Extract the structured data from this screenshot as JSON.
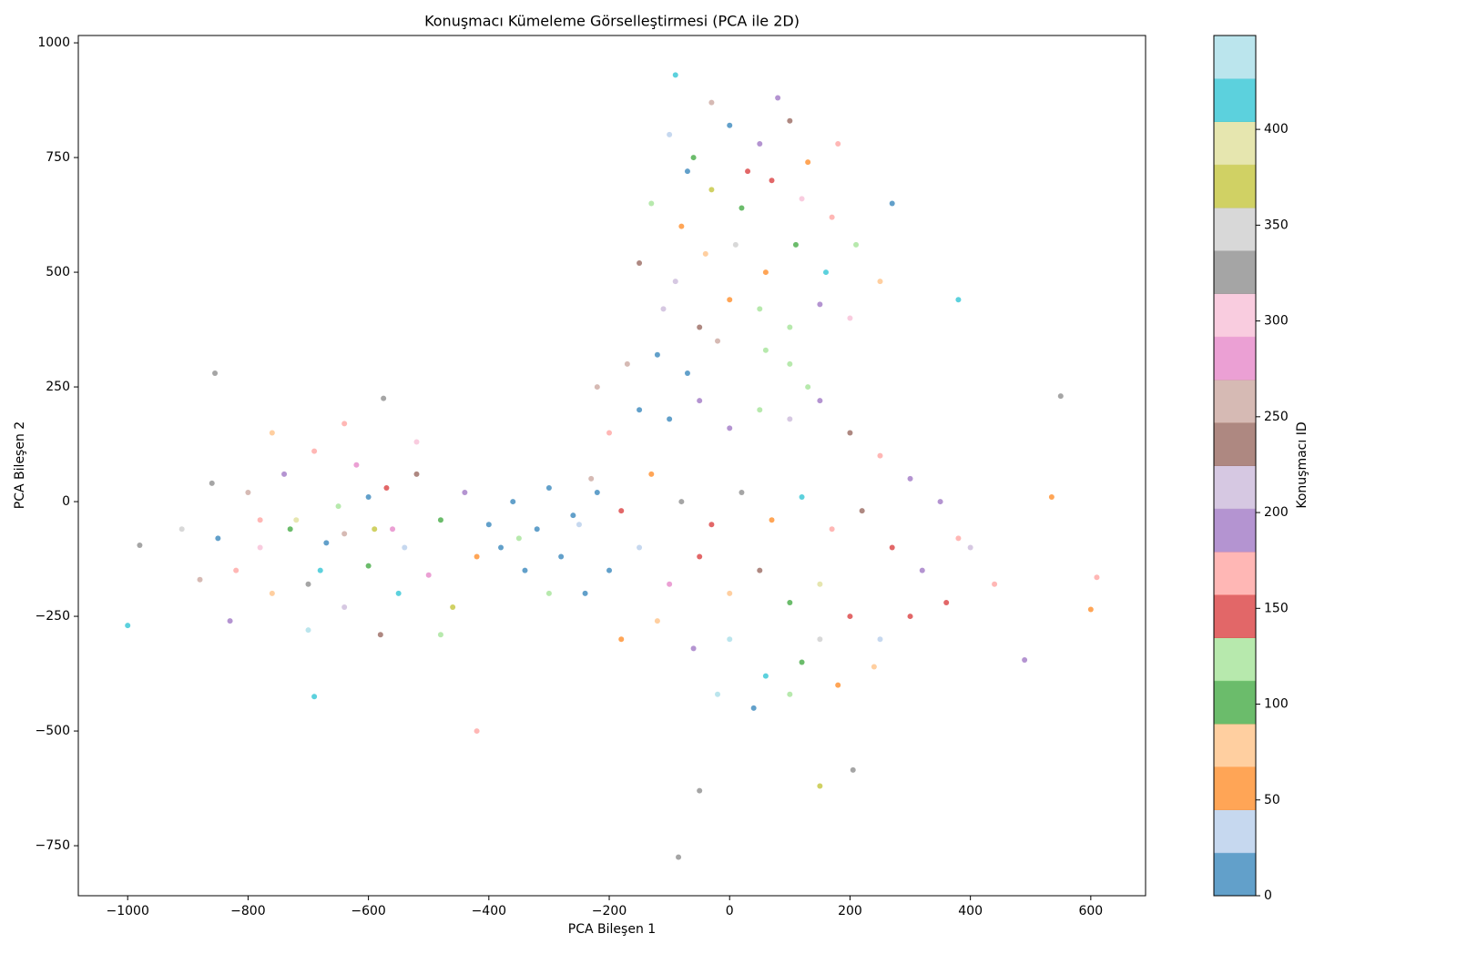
{
  "chart_data": {
    "type": "scatter",
    "title": "Konuşmacı Kümeleme Görselleştirmesi (PCA ile 2D)",
    "x_label": "PCA Bileşen 1",
    "y_label": "PCA Bileşen 2",
    "colorbar_label": "Konuşmacı ID",
    "x": [
      -850,
      -820,
      -800,
      -780,
      -760,
      -740,
      -720,
      -700,
      -690,
      -670,
      -650,
      -640,
      -620,
      -600,
      -590,
      -570,
      -550,
      -540,
      -520,
      -500,
      -480,
      -460,
      -440,
      -420,
      -880,
      -860,
      -760,
      -700,
      -640,
      -580,
      -520,
      -480,
      -910,
      -830,
      -600,
      -680,
      -730,
      -560,
      -780,
      -640,
      -400,
      -380,
      -360,
      -340,
      -320,
      -300,
      -280,
      -260,
      -240,
      -220,
      -350,
      -300,
      -100,
      -60,
      0,
      50,
      100,
      -130,
      -80,
      -30,
      20,
      70,
      120,
      170,
      -150,
      -90,
      -40,
      10,
      60,
      110,
      160,
      210,
      -110,
      -50,
      0,
      50,
      100,
      150,
      200,
      250,
      -70,
      30,
      130,
      180,
      80,
      -30,
      270,
      100,
      130,
      60,
      -220,
      -170,
      -120,
      -70,
      -20,
      -200,
      -150,
      -100,
      -50,
      0,
      50,
      100,
      150,
      200,
      250,
      300,
      350,
      380,
      -230,
      -180,
      -130,
      -80,
      -30,
      20,
      70,
      120,
      170,
      220,
      270,
      320,
      360,
      -200,
      -150,
      -100,
      -50,
      0,
      50,
      100,
      150,
      200,
      250,
      300,
      -180,
      -120,
      -60,
      0,
      60,
      120,
      180,
      240,
      -20,
      40,
      100,
      150,
      -250,
      400,
      440,
      -1000,
      -980,
      -855,
      -85,
      550,
      610,
      150,
      -90,
      205,
      600,
      -690,
      -575,
      -420,
      490,
      380,
      -50,
      535
    ],
    "y": [
      -80,
      -150,
      20,
      -100,
      -200,
      60,
      -40,
      -180,
      110,
      -90,
      -10,
      -230,
      80,
      -140,
      -60,
      30,
      -200,
      -100,
      60,
      -160,
      -40,
      -230,
      20,
      -120,
      -170,
      40,
      150,
      -280,
      170,
      -290,
      130,
      -290,
      -60,
      -260,
      10,
      -150,
      -60,
      -60,
      -40,
      -70,
      -50,
      -100,
      0,
      -150,
      -60,
      30,
      -120,
      -30,
      -200,
      20,
      -80,
      -200,
      800,
      750,
      820,
      780,
      830,
      650,
      600,
      680,
      640,
      700,
      660,
      620,
      520,
      480,
      540,
      560,
      500,
      560,
      500,
      560,
      420,
      380,
      440,
      420,
      380,
      430,
      400,
      480,
      720,
      720,
      740,
      780,
      880,
      870,
      650,
      300,
      250,
      330,
      250,
      300,
      320,
      280,
      350,
      150,
      200,
      180,
      220,
      160,
      200,
      180,
      220,
      150,
      100,
      50,
      0,
      -80,
      50,
      -20,
      60,
      0,
      -50,
      20,
      -40,
      10,
      -60,
      -20,
      -100,
      -150,
      -220,
      -150,
      -100,
      -180,
      -120,
      -200,
      -150,
      -220,
      -180,
      -250,
      -300,
      -250,
      -300,
      -260,
      -320,
      -300,
      -380,
      -350,
      -400,
      -360,
      -420,
      -450,
      -420,
      -300,
      -50,
      -100,
      -180,
      -270,
      -95,
      280,
      -775,
      230,
      -165,
      -620,
      930,
      -585,
      -235,
      -425,
      225,
      -500,
      -345,
      440,
      -630,
      10
    ],
    "c": [
      12,
      160,
      250,
      300,
      70,
      180,
      400,
      330,
      170,
      20,
      120,
      210,
      270,
      90,
      360,
      150,
      420,
      40,
      230,
      290,
      110,
      380,
      190,
      60,
      260,
      320,
      80,
      430,
      175,
      240,
      310,
      130,
      350,
      200,
      20,
      410,
      90,
      280,
      170,
      250,
      5,
      10,
      15,
      5,
      10,
      0,
      15,
      5,
      10,
      0,
      115,
      120,
      40,
      100,
      10,
      190,
      230,
      120,
      60,
      380,
      100,
      140,
      300,
      160,
      230,
      210,
      70,
      350,
      50,
      100,
      410,
      120,
      220,
      240,
      60,
      120,
      130,
      200,
      310,
      80,
      20,
      140,
      60,
      170,
      180,
      250,
      5,
      125,
      120,
      115,
      260,
      250,
      10,
      5,
      250,
      170,
      15,
      0,
      200,
      180,
      120,
      220,
      180,
      240,
      160,
      200,
      190,
      170,
      260,
      150,
      60,
      320,
      150,
      330,
      50,
      420,
      160,
      230,
      150,
      190,
      145,
      10,
      40,
      290,
      150,
      70,
      230,
      100,
      400,
      155,
      40,
      150,
      60,
      80,
      200,
      430,
      420,
      90,
      55,
      80,
      440,
      20,
      130,
      340,
      30,
      210,
      170,
      420,
      330,
      330,
      330,
      330,
      160,
      360,
      420,
      330,
      60,
      420,
      330,
      170,
      190,
      410,
      330,
      50
    ],
    "colors": [
      "#1f77b4",
      "#aec7e8",
      "#ff7f0e",
      "#ffbb78",
      "#2ca02c",
      "#98df8a",
      "#d62728",
      "#ff9896",
      "#9467bd",
      "#c5b0d5",
      "#8c564b",
      "#c49c94",
      "#e377c2",
      "#f7b6d2",
      "#7f7f7f",
      "#c7c7c7",
      "#bcbd22",
      "#dbdb8d",
      "#17becf",
      "#9edae5"
    ],
    "xlim": [
      -1082,
      691
    ],
    "ylim": [
      -859,
      1016
    ],
    "clim": [
      0,
      449
    ],
    "xticks": [
      {
        "value": -1000,
        "label": "−1000"
      },
      {
        "value": -800,
        "label": "−800"
      },
      {
        "value": -600,
        "label": "−600"
      },
      {
        "value": -400,
        "label": "−400"
      },
      {
        "value": -200,
        "label": "−200"
      },
      0,
      200,
      400,
      600
    ],
    "yticks": [
      {
        "value": -750,
        "label": "−750"
      },
      {
        "value": -500,
        "label": "−500"
      },
      {
        "value": -250,
        "label": "−250"
      },
      0,
      250,
      500,
      750,
      1000
    ],
    "cticks": [
      0,
      50,
      100,
      150,
      200,
      250,
      300,
      350,
      400
    ]
  }
}
